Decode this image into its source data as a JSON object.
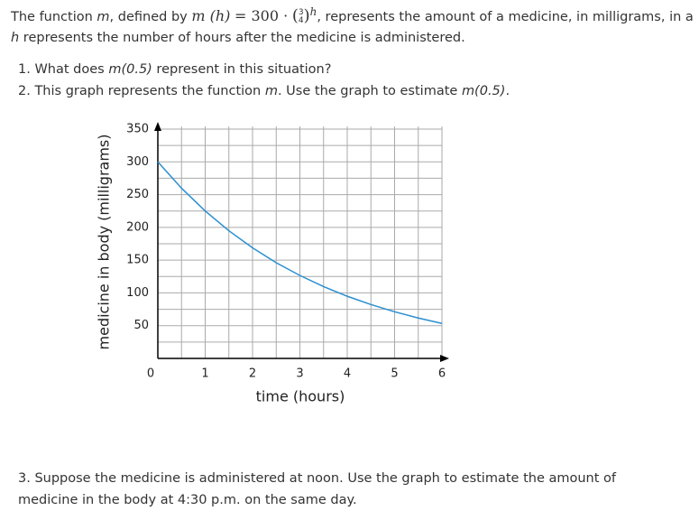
{
  "intro": {
    "before": "The function ",
    "var": "m",
    "mid": ", defined by ",
    "formula": {
      "lhs": "m (h)",
      "eq": "= 300 ·",
      "num": "3",
      "den": "4",
      "exp": "h"
    },
    "after": ", represents the amount of a medicine, in milligrams, in a",
    "line2_var": "h",
    "line2": " represents the number of hours after the medicine is administered."
  },
  "questions": [
    {
      "number": "1.",
      "before": "What does ",
      "italic": "m(0.5)",
      "after": " represent in this situation?"
    },
    {
      "number": "2.",
      "before": "This graph represents the function ",
      "italic": "m",
      "mid": ". Use the graph to estimate ",
      "italic2": "m(0.5)",
      "after": "."
    },
    {
      "number": "3.",
      "text": "Suppose the medicine is administered at noon. Use the graph to estimate the amount of medicine in the body at 4:30 p.m. on the same day."
    }
  ],
  "chart_data": {
    "type": "line",
    "x_label": "time (hours)",
    "y_label": "medicine in body (milligrams)",
    "x": [
      0,
      0.5,
      1,
      1.5,
      2,
      2.5,
      3,
      3.5,
      4,
      4.5,
      5,
      5.5,
      6
    ],
    "values": [
      300,
      259.8,
      225,
      194.9,
      168.75,
      146.1,
      126.6,
      109.6,
      94.9,
      82.2,
      71.2,
      61.7,
      53.4
    ],
    "color": "#2a8fd0",
    "xlim": [
      0,
      6
    ],
    "ylim": [
      0,
      350
    ],
    "xticks": [
      0,
      1,
      2,
      3,
      4,
      5,
      6
    ],
    "yticks": [
      50,
      100,
      150,
      200,
      250,
      300,
      350
    ],
    "xgrid": [
      0.5,
      1,
      1.5,
      2,
      2.5,
      3,
      3.5,
      4,
      4.5,
      5,
      5.5,
      6
    ],
    "ygrid": [
      25,
      50,
      75,
      100,
      125,
      150,
      175,
      200,
      225,
      250,
      275,
      300,
      325,
      350
    ],
    "grid": true
  }
}
